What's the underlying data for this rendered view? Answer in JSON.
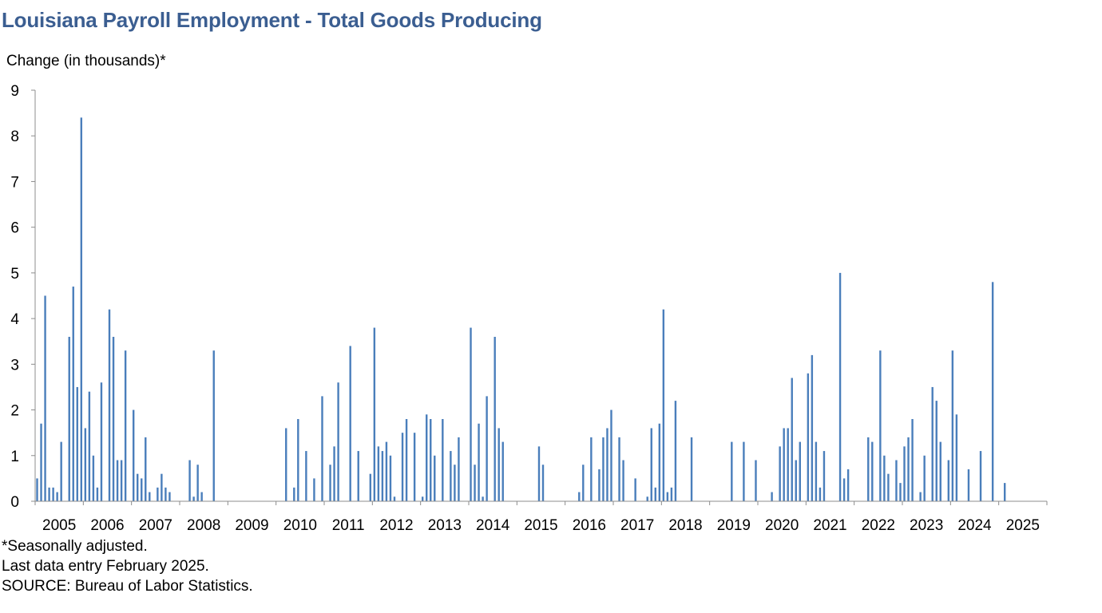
{
  "chart_data": {
    "type": "bar",
    "title": "Louisiana Payroll Employment - Total Goods Producing",
    "ylabel": "Change (in thousands)*",
    "xlabel": "",
    "ylim": [
      0,
      9
    ],
    "yticks": [
      "0",
      "1",
      "2",
      "3",
      "4",
      "5",
      "6",
      "7",
      "8",
      "9"
    ],
    "x_tick_labels": [
      "2005",
      "2006",
      "2007",
      "2008",
      "2009",
      "2010",
      "2011",
      "2012",
      "2013",
      "2014",
      "2015",
      "2016",
      "2017",
      "2018",
      "2019",
      "2020",
      "2021",
      "2022",
      "2023",
      "2024",
      "2025"
    ],
    "first_year": 2005,
    "bar_color": "#4A7EBB",
    "grid": false,
    "legend": "none",
    "values_by_year": [
      [
        0.5,
        1.7,
        4.5,
        0.3,
        0.3,
        0.2,
        1.3,
        0,
        3.6,
        4.7,
        2.5,
        8.4
      ],
      [
        1.6,
        2.4,
        1.0,
        0.3,
        2.6,
        0,
        4.2,
        3.6,
        0.9,
        0.9,
        3.3,
        0
      ],
      [
        2.0,
        0.6,
        0.5,
        1.4,
        0.2,
        0,
        0.3,
        0.6,
        0.3,
        0.2,
        0,
        0
      ],
      [
        0,
        0,
        0.9,
        0.1,
        0.8,
        0.2,
        0,
        0,
        3.3,
        0,
        0,
        0
      ],
      [
        0,
        0,
        0,
        0,
        0,
        0,
        0,
        0,
        0,
        0,
        0,
        0
      ],
      [
        0,
        0,
        1.6,
        0,
        0.3,
        1.8,
        0,
        1.1,
        0,
        0.5,
        0,
        2.3
      ],
      [
        0,
        0.8,
        1.2,
        2.6,
        0,
        0,
        3.4,
        0,
        1.1,
        0,
        0,
        0.6
      ],
      [
        3.8,
        1.2,
        1.1,
        1.3,
        1.0,
        0.1,
        0,
        1.5,
        1.8,
        0,
        1.5,
        0
      ],
      [
        0.1,
        1.9,
        1.8,
        1.0,
        0,
        1.8,
        0,
        1.1,
        0.8,
        1.4,
        0,
        0
      ],
      [
        3.8,
        0.8,
        1.7,
        0.1,
        2.3,
        0,
        3.6,
        1.6,
        1.3,
        0,
        0,
        0
      ],
      [
        0,
        0,
        0,
        0,
        0,
        1.2,
        0.8,
        0,
        0,
        0,
        0,
        0
      ],
      [
        0,
        0,
        0,
        0.2,
        0.8,
        0,
        1.4,
        0,
        0.7,
        1.4,
        1.6,
        2.0
      ],
      [
        0,
        1.4,
        0.9,
        0,
        0,
        0.5,
        0,
        0,
        0.1,
        1.6,
        0.3,
        1.7
      ],
      [
        4.2,
        0.2,
        0.3,
        2.2,
        0,
        0,
        0,
        1.4,
        0,
        0,
        0,
        0
      ],
      [
        0,
        0,
        0,
        0,
        0,
        1.3,
        0,
        0,
        1.3,
        0,
        0,
        0.9
      ],
      [
        0,
        0,
        0,
        0.2,
        0,
        1.2,
        1.6,
        1.6,
        2.7,
        0.9,
        1.3,
        0
      ],
      [
        2.8,
        3.2,
        1.3,
        0.3,
        1.1,
        0,
        0,
        0,
        5.0,
        0.5,
        0.7,
        0
      ],
      [
        0,
        0,
        0,
        1.4,
        1.3,
        0,
        3.3,
        1.0,
        0.6,
        0,
        0.9,
        0.4
      ],
      [
        1.2,
        1.4,
        1.8,
        0,
        0.2,
        1.0,
        0,
        2.5,
        2.2,
        1.3,
        0,
        0.9
      ],
      [
        3.3,
        1.9,
        0,
        0,
        0.7,
        0,
        0,
        1.1,
        0,
        0,
        4.8,
        0
      ],
      [
        0,
        0.4
      ]
    ]
  },
  "notes": [
    "*Seasonally adjusted.",
    "Last data entry February 2025.",
    "SOURCE: Bureau of Labor Statistics."
  ]
}
